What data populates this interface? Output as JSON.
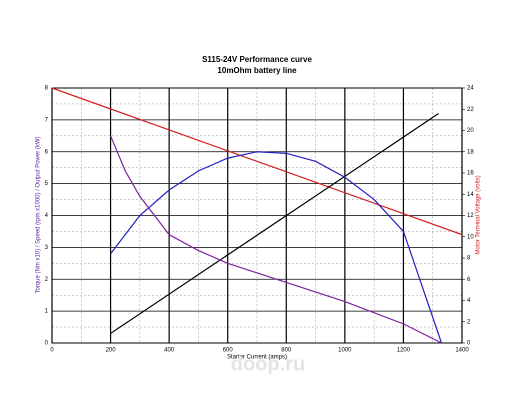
{
  "chart_data": {
    "type": "line",
    "title": "S115-24V Performance  curve",
    "subtitle": "10mOhm battery line",
    "x_label": "Starter Current (amps)",
    "y_label": "Torque (Nm x10) / Speed (rpm x1000) / Output Power (kW)",
    "y2_label": "Motor Terminal Voltage (volts)",
    "annotation": "doop.ru",
    "xlim": [
      0,
      1400
    ],
    "xticks": [
      0,
      200,
      400,
      600,
      800,
      1000,
      1200,
      1400
    ],
    "ylim": [
      0,
      8
    ],
    "yticks": [
      0,
      1,
      2,
      3,
      4,
      5,
      6,
      7,
      8
    ],
    "y2lim": [
      0,
      24
    ],
    "y2ticks": [
      0,
      2,
      4,
      6,
      8,
      10,
      12,
      14,
      16,
      18,
      20,
      22,
      24
    ],
    "grid": true,
    "series": [
      {
        "color": "#d42020",
        "axis": "y2",
        "x": [
          0,
          1400
        ],
        "values": [
          24,
          10.2
        ]
      },
      {
        "color": "#000000",
        "x": [
          200,
          1320
        ],
        "values": [
          0.3,
          7.2
        ]
      },
      {
        "color": "#2020c0",
        "x": [
          200,
          300,
          400,
          500,
          600,
          700,
          800,
          900,
          1000,
          1100,
          1200,
          1330
        ],
        "values": [
          2.8,
          4.0,
          4.8,
          5.4,
          5.8,
          6.0,
          5.95,
          5.7,
          5.2,
          4.5,
          3.5,
          0
        ]
      },
      {
        "color": "#8020a0",
        "x": [
          200,
          250,
          300,
          400,
          500,
          600,
          800,
          1000,
          1200,
          1330
        ],
        "values": [
          6.5,
          5.4,
          4.6,
          3.4,
          2.9,
          2.5,
          1.9,
          1.3,
          0.6,
          0
        ]
      }
    ]
  }
}
